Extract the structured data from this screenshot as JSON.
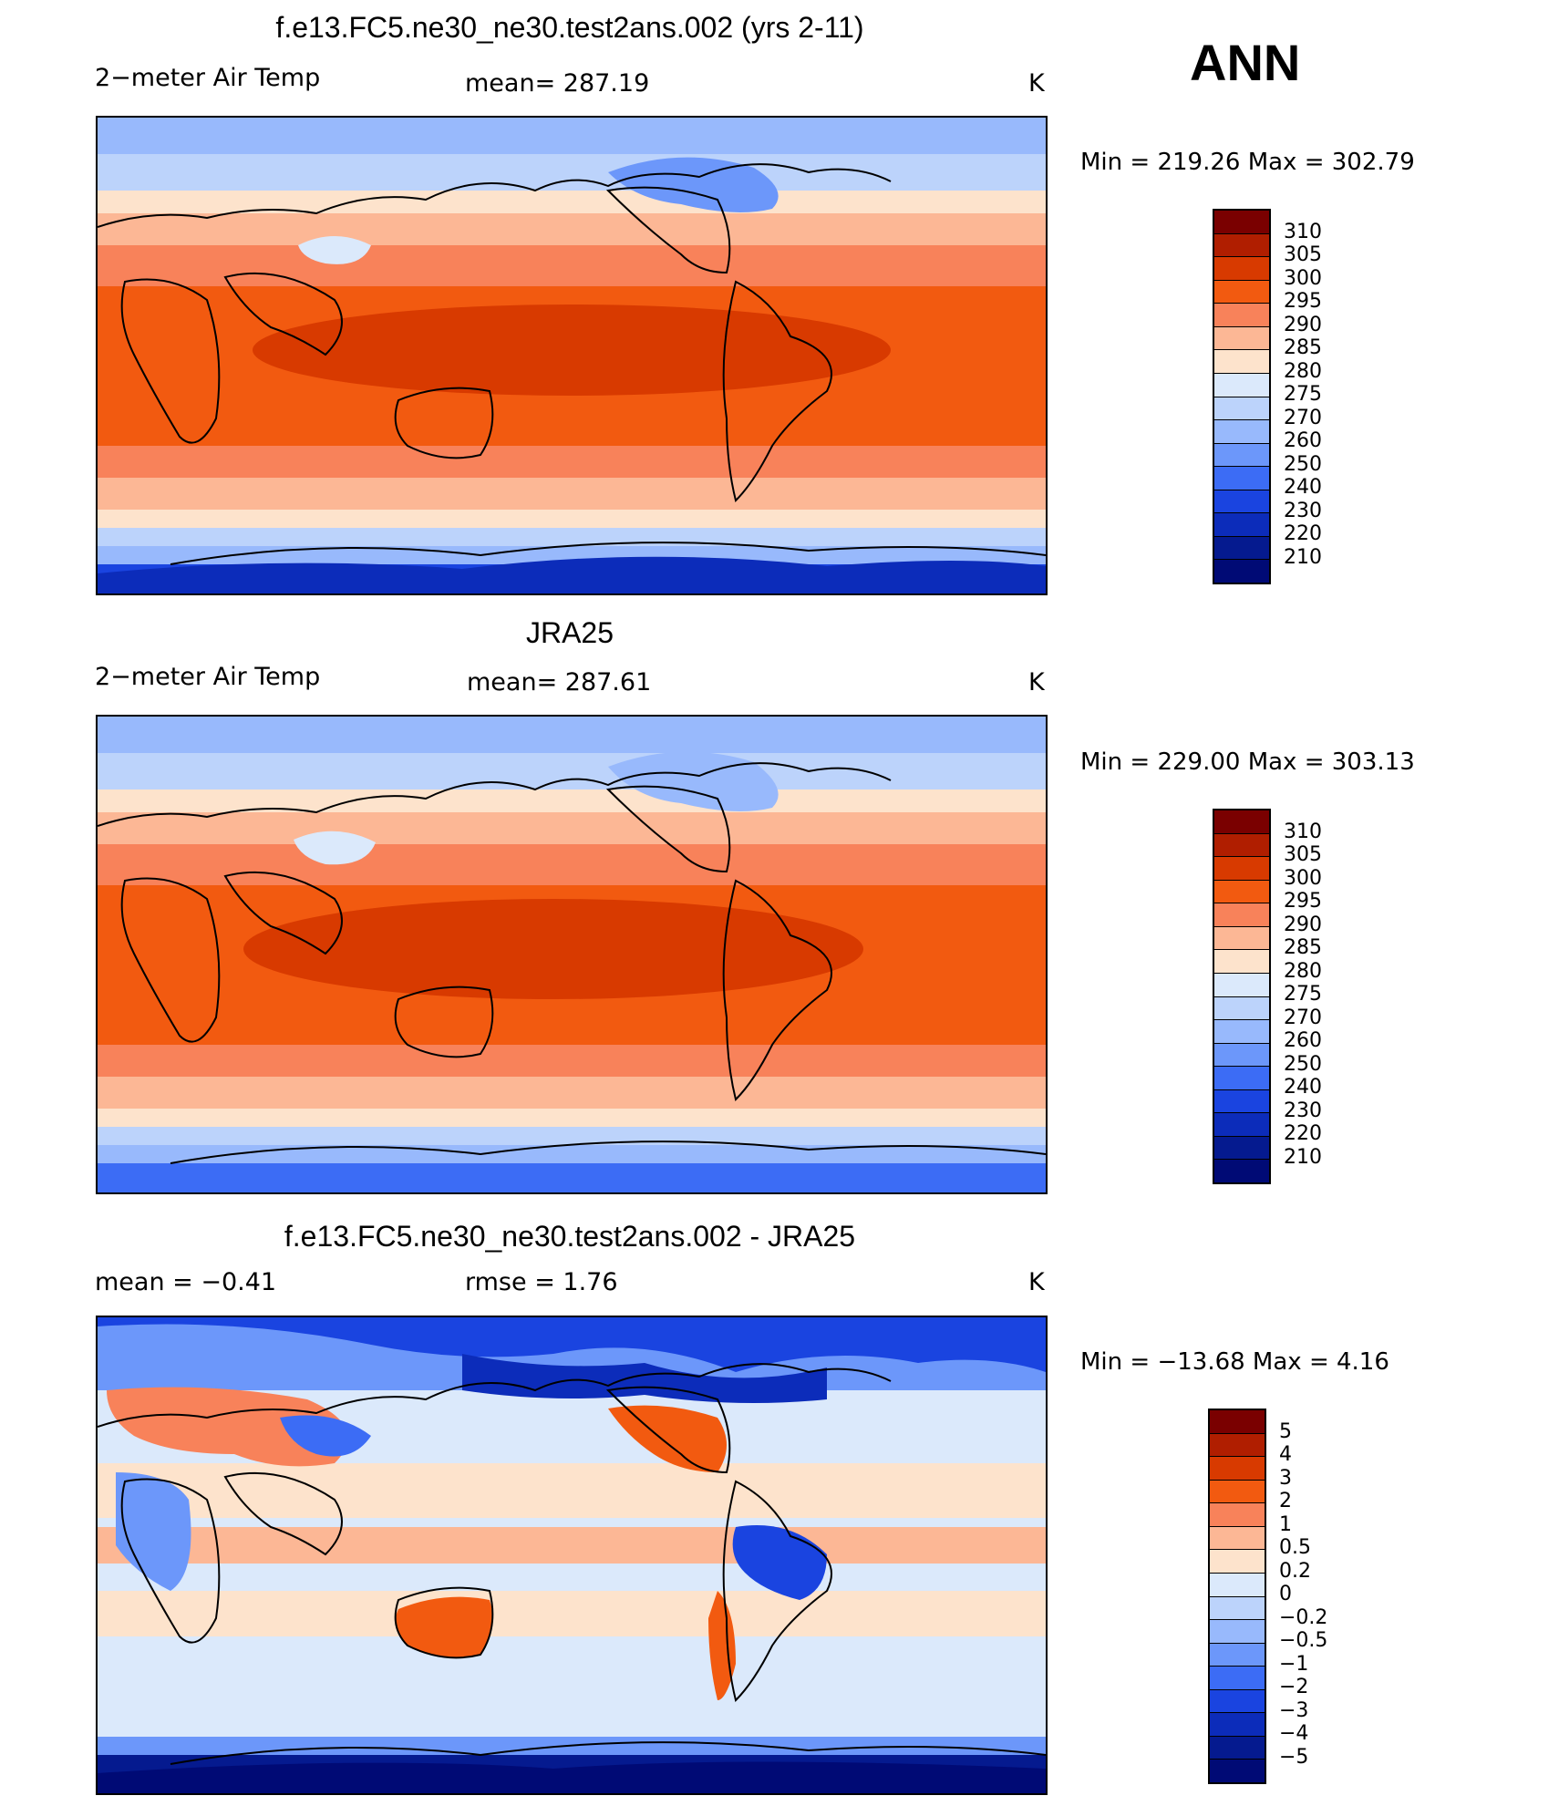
{
  "header": {
    "season": "ANN",
    "units": "K"
  },
  "panels": [
    {
      "title": "f.e13.FC5.ne30_ne30.test2ans.002 (yrs 2-11)",
      "left_label": "2−meter Air Temp",
      "center_label": "mean=  287.19",
      "units": "K",
      "minmax": "Min  =  219.26  Max  =  302.79",
      "colorbar": "temp"
    },
    {
      "title": "JRA25",
      "left_label": "2−meter Air Temp",
      "center_label": "mean=  287.61",
      "units": "K",
      "minmax": "Min  =  229.00  Max  =  303.13",
      "colorbar": "temp"
    },
    {
      "title": "f.e13.FC5.ne30_ne30.test2ans.002 - JRA25",
      "left_label": "mean  =     −0.41",
      "center_label": "rmse  =      1.76",
      "units": "K",
      "minmax": "Min  =  −13.68  Max  =     4.16",
      "colorbar": "diff"
    }
  ],
  "colorbars": {
    "temp": {
      "colors": [
        "#7a0000",
        "#b01e00",
        "#d83a00",
        "#f25a10",
        "#f8825a",
        "#fcb795",
        "#fde3cc",
        "#dbe9fb",
        "#bcd3fb",
        "#98b9fc",
        "#6c97fa",
        "#3c6cf5",
        "#1a44e0",
        "#0c2cba",
        "#051a8f",
        "#000a75"
      ],
      "labels": [
        "310",
        "305",
        "300",
        "295",
        "290",
        "285",
        "280",
        "275",
        "270",
        "260",
        "250",
        "240",
        "230",
        "220",
        "210"
      ]
    },
    "diff": {
      "colors": [
        "#7a0000",
        "#b01e00",
        "#d83a00",
        "#f25a10",
        "#f8825a",
        "#fcb795",
        "#fde3cc",
        "#dbe9fb",
        "#bcd3fb",
        "#98b9fc",
        "#6c97fa",
        "#3c6cf5",
        "#1a44e0",
        "#0c2cba",
        "#051a8f",
        "#000a75"
      ],
      "labels": [
        "5",
        "4",
        "3",
        "2",
        "1",
        "0.5",
        "0.2",
        "0",
        "−0.2",
        "−0.5",
        "−1",
        "−2",
        "−3",
        "−4",
        "−5"
      ]
    }
  }
}
